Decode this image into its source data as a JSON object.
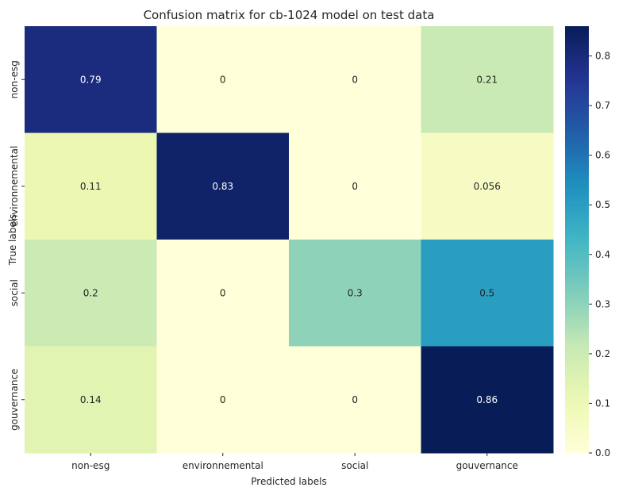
{
  "chart_data": {
    "type": "heatmap",
    "title": "Confusion matrix for cb-1024 model on test data",
    "xlabel": "Predicted labels",
    "ylabel": "True labels",
    "x_categories": [
      "non-esg",
      "environnemental",
      "social",
      "gouvernance"
    ],
    "y_categories": [
      "non-esg",
      "environnemental",
      "social",
      "gouvernance"
    ],
    "values": [
      [
        0.79,
        0,
        0,
        0.21
      ],
      [
        0.11,
        0.83,
        0,
        0.056
      ],
      [
        0.2,
        0,
        0.3,
        0.5
      ],
      [
        0.14,
        0,
        0,
        0.86
      ]
    ],
    "cell_labels": [
      [
        "0.79",
        "0",
        "0",
        "0.21"
      ],
      [
        "0.11",
        "0.83",
        "0",
        "0.056"
      ],
      [
        "0.2",
        "0",
        "0.3",
        "0.5"
      ],
      [
        "0.14",
        "0",
        "0",
        "0.86"
      ]
    ],
    "colormap": "YlGnBu",
    "vmin": 0,
    "vmax": 0.86,
    "colorbar_ticks": [
      0.0,
      0.1,
      0.2,
      0.3,
      0.4,
      0.5,
      0.6,
      0.7,
      0.8
    ],
    "colorbar_tick_labels": [
      "0.0",
      "0.1",
      "0.2",
      "0.3",
      "0.4",
      "0.5",
      "0.6",
      "0.7",
      "0.8"
    ]
  }
}
